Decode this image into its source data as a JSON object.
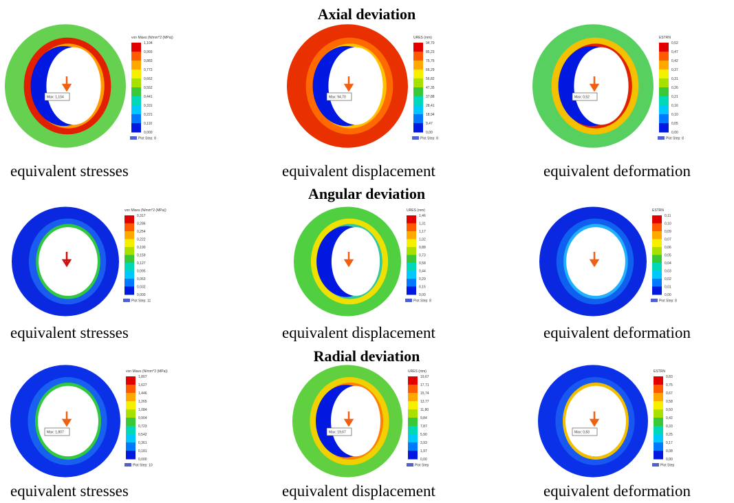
{
  "rows": [
    {
      "title": "Axial deviation",
      "panels": [
        {
          "legend_title": "von Mises (N/mm^2 (MPa))",
          "scale": [
            "1,104",
            "0,993",
            "0,883",
            "0,772",
            "0,662",
            "0,552",
            "0,441",
            "0,331",
            "0,221",
            "0,110",
            "0,000"
          ],
          "max_label": "Max: 1,104",
          "plot_step": "Plot Step: 8",
          "caption": "equivalent stresses"
        },
        {
          "legend_title": "URES (mm)",
          "scale": [
            "94,70",
            "85,23",
            "75,76",
            "66,29",
            "56,82",
            "47,35",
            "37,88",
            "28,41",
            "18,94",
            "9,47",
            "0,00"
          ],
          "max_label": "Max: 94,70",
          "plot_step": "Plot Step: 8",
          "caption": "equivalent displacement"
        },
        {
          "legend_title": "ESTRN",
          "scale": [
            "0,52",
            "0,47",
            "0,42",
            "0,37",
            "0,31",
            "0,26",
            "0,21",
            "0,16",
            "0,10",
            "0,05",
            "0,00"
          ],
          "max_label": "Max: 0,52",
          "plot_step": "Plot Step: 8",
          "caption": "equivalent deformation"
        }
      ]
    },
    {
      "title": "Angular deviation",
      "panels": [
        {
          "legend_title": "von Mises (N/mm^2 (MPa))",
          "scale": [
            "0,317",
            "0,286",
            "0,254",
            "0,222",
            "0,190",
            "0,159",
            "0,127",
            "0,095",
            "0,063",
            "0,032",
            "0,000"
          ],
          "plot_step": "Plot Step: 11",
          "caption": "equivalent stresses"
        },
        {
          "legend_title": "URES (mm)",
          "scale": [
            "1,46",
            "1,31",
            "1,17",
            "1,02",
            "0,88",
            "0,73",
            "0,58",
            "0,44",
            "0,29",
            "0,15",
            "0,00"
          ],
          "plot_step": "Plot Step: 8",
          "caption": "equivalent displacement"
        },
        {
          "legend_title": "ESTRN",
          "scale": [
            "0,11",
            "0,10",
            "0,09",
            "0,07",
            "0,06",
            "0,05",
            "0,04",
            "0,03",
            "0,02",
            "0,01",
            "0,00"
          ],
          "plot_step": "Plot Step: 8",
          "caption": "equivalent deformation"
        }
      ]
    },
    {
      "title": "Radial deviation",
      "panels": [
        {
          "legend_title": "von Mises (N/mm^2 (MPa))",
          "scale": [
            "1,807",
            "1,627",
            "1,446",
            "1,265",
            "1,084",
            "0,904",
            "0,723",
            "0,542",
            "0,361",
            "0,181",
            "0,000"
          ],
          "max_label": "Max: 1,807",
          "plot_step": "Plot Step: 10",
          "caption": "equivalent stresses"
        },
        {
          "legend_title": "URES (mm)",
          "scale": [
            "19,67",
            "17,71",
            "15,74",
            "13,77",
            "11,80",
            "9,84",
            "7,87",
            "5,90",
            "3,93",
            "1,97",
            "0,00"
          ],
          "max_label": "Max: 19,67",
          "plot_step": "Plot Step",
          "caption": "equivalent displacement"
        },
        {
          "legend_title": "ESTRN",
          "scale": [
            "0,83",
            "0,75",
            "0,67",
            "0,58",
            "0,50",
            "0,42",
            "0,33",
            "0,25",
            "0,17",
            "0,08",
            "0,00"
          ],
          "max_label": "Max: 0,83",
          "plot_step": "Plot Step",
          "caption": "equivalent deformation"
        }
      ]
    }
  ]
}
